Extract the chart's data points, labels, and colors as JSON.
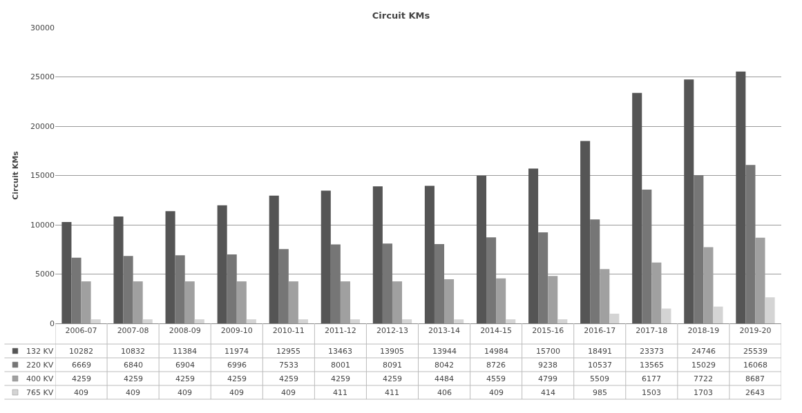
{
  "chart_data": {
    "type": "bar",
    "title": "Circuit KMs",
    "ylabel": "Circuit KMs",
    "categories": [
      "2006-07",
      "2007-08",
      "2008-09",
      "2009-10",
      "2010-11",
      "2011-12",
      "2012-13",
      "2013-14",
      "2014-15",
      "2015-16",
      "2016-17",
      "2017-18",
      "2018-19",
      "2019-20"
    ],
    "series": [
      {
        "name": "132 KV",
        "color": "#555555",
        "values": [
          10282,
          10832,
          11384,
          11974,
          12955,
          13463,
          13905,
          13944,
          14984,
          15700,
          18491,
          23373,
          24746,
          25539
        ]
      },
      {
        "name": "220 KV",
        "color": "#767676",
        "values": [
          6669,
          6840,
          6904,
          6996,
          7533,
          8001,
          8091,
          8042,
          8726,
          9238,
          10537,
          13565,
          15029,
          16068
        ]
      },
      {
        "name": "400 KV",
        "color": "#a0a0a0",
        "values": [
          4259,
          4259,
          4259,
          4259,
          4259,
          4259,
          4259,
          4484,
          4559,
          4799,
          5509,
          6177,
          7722,
          8687
        ]
      },
      {
        "name": "765 KV",
        "color": "#d4d4d4",
        "values": [
          409,
          409,
          409,
          409,
          409,
          411,
          411,
          406,
          409,
          414,
          985,
          1503,
          1703,
          2643
        ]
      }
    ],
    "ylim": [
      0,
      30000
    ],
    "yticks": [
      0,
      5000,
      10000,
      15000,
      20000,
      25000,
      30000
    ],
    "grid": "y",
    "data_labels": true,
    "legend": "bottom left"
  }
}
